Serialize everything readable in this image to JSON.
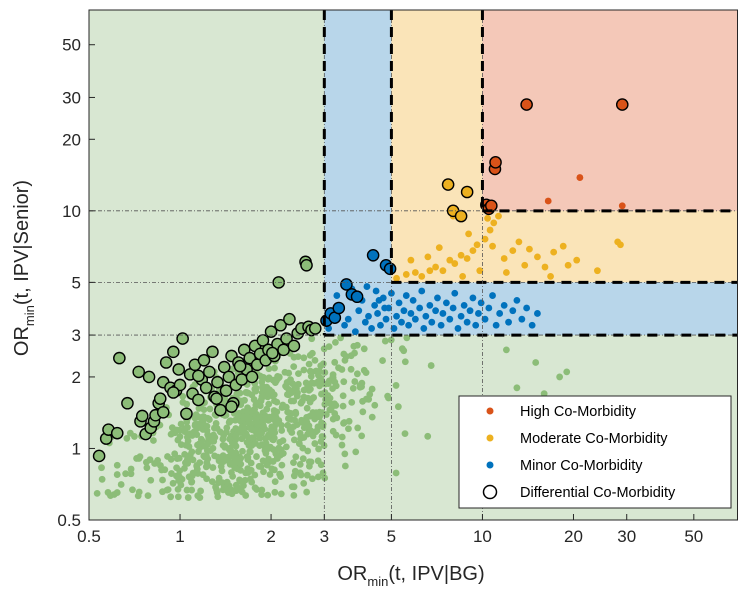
{
  "chart_data": {
    "type": "scatter",
    "xscale": "log",
    "yscale": "log",
    "xlim": [
      0.5,
      70
    ],
    "ylim": [
      0.5,
      70
    ],
    "xlabel": {
      "base": "OR",
      "sub": "min",
      "rest": "(t, IPV|BG)"
    },
    "ylabel": {
      "base": "OR",
      "sub": "min",
      "rest": "(t, IPV|Senior)"
    },
    "xticks": [
      0.5,
      1,
      2,
      3,
      5,
      10,
      20,
      30,
      50
    ],
    "xtick_labels": [
      "0.5",
      "1",
      "2",
      "3",
      "5",
      "10",
      "20",
      "30",
      "50"
    ],
    "yticks": [
      0.5,
      1,
      2,
      3,
      5,
      10,
      20,
      30,
      50
    ],
    "ytick_labels": [
      "0.5",
      "1",
      "2",
      "3",
      "5",
      "10",
      "20",
      "30",
      "50"
    ],
    "grid": false,
    "legend_position": "bottom-right",
    "regions": [
      {
        "name": "minor",
        "color": "#b8d6ea",
        "x": [
          3,
          70
        ],
        "y": [
          3,
          5
        ]
      },
      {
        "name": "minor-vertical",
        "color": "#b8d6ea",
        "x": [
          3,
          5
        ],
        "y": [
          3,
          70
        ]
      },
      {
        "name": "moderate",
        "color": "#fae4b8",
        "x": [
          5,
          70
        ],
        "y": [
          5,
          10
        ]
      },
      {
        "name": "moderate-vertical",
        "color": "#fae4b8",
        "x": [
          5,
          10
        ],
        "y": [
          5,
          70
        ]
      },
      {
        "name": "high",
        "color": "#f4c8b8",
        "x": [
          10,
          70
        ],
        "y": [
          10,
          70
        ]
      }
    ],
    "background_color": "#d8e7d2",
    "thresholds": [
      3,
      5,
      10
    ],
    "series": [
      {
        "name": "High Co-Morbidity",
        "color": "#d95319",
        "points": [
          [
            16.5,
            11
          ],
          [
            21,
            13.8
          ],
          [
            29,
            10.5
          ],
          [
            14,
            28
          ],
          [
            29,
            28
          ]
        ]
      },
      {
        "name": "Moderate Co-Morbidity",
        "color": "#edb120",
        "points": [
          [
            5.2,
            5.2
          ],
          [
            5.6,
            5.4
          ],
          [
            6.0,
            5.5
          ],
          [
            6.3,
            5.3
          ],
          [
            6.7,
            5.6
          ],
          [
            7.0,
            5.8
          ],
          [
            7.4,
            5.6
          ],
          [
            7.8,
            6.2
          ],
          [
            8.1,
            6.0
          ],
          [
            8.5,
            6.5
          ],
          [
            8.9,
            6.3
          ],
          [
            9.3,
            6.8
          ],
          [
            9.6,
            7.2
          ],
          [
            10.2,
            7.6
          ],
          [
            10.6,
            8.3
          ],
          [
            10.9,
            8.9
          ],
          [
            11.3,
            9.5
          ],
          [
            10.4,
            9.3
          ],
          [
            10.8,
            7.1
          ],
          [
            11.8,
            6.3
          ],
          [
            12.6,
            6.8
          ],
          [
            13.2,
            7.4
          ],
          [
            14.3,
            6.9
          ],
          [
            15.2,
            6.4
          ],
          [
            16.1,
            5.8
          ],
          [
            17.2,
            6.7
          ],
          [
            18.5,
            7.1
          ],
          [
            20.5,
            6.2
          ],
          [
            24.0,
            5.6
          ],
          [
            28.0,
            7.4
          ],
          [
            28.6,
            7.2
          ],
          [
            8.0,
            9.5
          ],
          [
            9.0,
            8.0
          ],
          [
            7.2,
            7.0
          ],
          [
            6.6,
            6.4
          ],
          [
            5.8,
            6.2
          ],
          [
            12.0,
            5.5
          ],
          [
            13.8,
            5.9
          ],
          [
            16.8,
            5.3
          ],
          [
            19.2,
            5.9
          ],
          [
            9.8,
            5.6
          ],
          [
            8.6,
            5.3
          ]
        ]
      },
      {
        "name": "Minor Co-Morbidity",
        "color": "#0072bd",
        "points": [
          [
            3.1,
            3.2
          ],
          [
            3.2,
            3.6
          ],
          [
            3.4,
            3.9
          ],
          [
            3.5,
            3.3
          ],
          [
            3.6,
            3.5
          ],
          [
            3.8,
            3.1
          ],
          [
            3.9,
            3.8
          ],
          [
            4.0,
            4.2
          ],
          [
            4.1,
            3.4
          ],
          [
            4.2,
            3.6
          ],
          [
            4.3,
            3.2
          ],
          [
            4.4,
            4.0
          ],
          [
            4.5,
            3.7
          ],
          [
            4.6,
            3.3
          ],
          [
            4.7,
            4.3
          ],
          [
            4.8,
            3.5
          ],
          [
            4.9,
            3.9
          ],
          [
            5.0,
            4.5
          ],
          [
            5.1,
            3.2
          ],
          [
            5.2,
            3.6
          ],
          [
            5.3,
            4.1
          ],
          [
            5.4,
            3.4
          ],
          [
            5.5,
            3.8
          ],
          [
            5.6,
            4.4
          ],
          [
            5.7,
            3.3
          ],
          [
            5.8,
            3.7
          ],
          [
            5.9,
            4.2
          ],
          [
            6.0,
            3.5
          ],
          [
            6.2,
            3.9
          ],
          [
            6.3,
            4.6
          ],
          [
            6.4,
            3.2
          ],
          [
            6.5,
            3.6
          ],
          [
            6.7,
            4.0
          ],
          [
            6.8,
            3.4
          ],
          [
            7.0,
            3.8
          ],
          [
            7.1,
            4.3
          ],
          [
            7.3,
            3.3
          ],
          [
            7.4,
            3.7
          ],
          [
            7.6,
            4.1
          ],
          [
            7.8,
            3.5
          ],
          [
            8.0,
            3.9
          ],
          [
            8.1,
            4.5
          ],
          [
            8.3,
            3.2
          ],
          [
            8.5,
            3.6
          ],
          [
            8.7,
            4.0
          ],
          [
            8.9,
            3.4
          ],
          [
            9.1,
            3.8
          ],
          [
            9.3,
            4.3
          ],
          [
            9.5,
            3.3
          ],
          [
            9.7,
            3.7
          ],
          [
            9.9,
            4.1
          ],
          [
            10.2,
            3.5
          ],
          [
            10.5,
            3.9
          ],
          [
            10.8,
            4.4
          ],
          [
            11.1,
            3.3
          ],
          [
            11.4,
            3.7
          ],
          [
            11.8,
            4.0
          ],
          [
            12.2,
            3.4
          ],
          [
            12.6,
            3.8
          ],
          [
            13.0,
            4.2
          ],
          [
            13.5,
            3.5
          ],
          [
            14.0,
            3.9
          ],
          [
            14.6,
            3.3
          ],
          [
            15.2,
            3.7
          ],
          [
            3.3,
            4.4
          ],
          [
            3.7,
            4.7
          ],
          [
            4.15,
            4.8
          ],
          [
            4.45,
            4.6
          ],
          [
            4.55,
            4.2
          ],
          [
            4.75,
            3.9
          ]
        ]
      },
      {
        "name": "Differential Co-Morbidity",
        "color": "none",
        "edgecolor": "#000000",
        "points": [
          [
            0.54,
            0.93
          ],
          [
            0.57,
            1.1
          ],
          [
            0.58,
            1.2
          ],
          [
            0.62,
            1.16
          ],
          [
            0.63,
            2.4
          ],
          [
            0.67,
            1.55
          ],
          [
            0.73,
            2.1
          ],
          [
            0.74,
            1.3
          ],
          [
            0.75,
            1.37
          ],
          [
            0.77,
            1.15
          ],
          [
            0.79,
            2.0
          ],
          [
            0.8,
            1.22
          ],
          [
            0.82,
            1.3
          ],
          [
            0.83,
            1.38
          ],
          [
            0.85,
            1.55
          ],
          [
            0.86,
            1.62
          ],
          [
            0.88,
            1.9
          ],
          [
            0.9,
            2.3
          ],
          [
            0.93,
            1.8
          ],
          [
            0.95,
            2.55
          ],
          [
            0.97,
            1.75
          ],
          [
            0.99,
            2.15
          ],
          [
            1.0,
            1.85
          ],
          [
            1.02,
            2.9
          ],
          [
            1.05,
            1.4
          ],
          [
            1.08,
            2.05
          ],
          [
            1.1,
            1.7
          ],
          [
            1.12,
            2.25
          ],
          [
            1.15,
            1.6
          ],
          [
            1.18,
            1.95
          ],
          [
            1.2,
            2.35
          ],
          [
            1.22,
            1.8
          ],
          [
            1.25,
            2.1
          ],
          [
            1.28,
            2.55
          ],
          [
            1.3,
            1.65
          ],
          [
            1.33,
            1.9
          ],
          [
            1.36,
            1.45
          ],
          [
            1.4,
            2.2
          ],
          [
            1.42,
            1.75
          ],
          [
            1.45,
            2.0
          ],
          [
            1.48,
            2.45
          ],
          [
            1.5,
            1.55
          ],
          [
            1.53,
            1.85
          ],
          [
            1.56,
            2.3
          ],
          [
            1.6,
            1.95
          ],
          [
            1.63,
            2.6
          ],
          [
            1.66,
            2.15
          ],
          [
            1.7,
            2.4
          ],
          [
            1.73,
            2.0
          ],
          [
            1.77,
            2.7
          ],
          [
            1.8,
            2.25
          ],
          [
            1.84,
            2.5
          ],
          [
            1.88,
            2.85
          ],
          [
            1.92,
            2.35
          ],
          [
            1.96,
            2.6
          ],
          [
            2.0,
            3.1
          ],
          [
            2.05,
            2.45
          ],
          [
            2.1,
            2.75
          ],
          [
            2.15,
            3.3
          ],
          [
            2.2,
            2.6
          ],
          [
            2.25,
            2.9
          ],
          [
            2.3,
            3.5
          ],
          [
            2.38,
            2.7
          ],
          [
            2.45,
            3.05
          ],
          [
            2.52,
            3.2
          ],
          [
            2.6,
            6.1
          ],
          [
            2.62,
            5.9
          ],
          [
            2.66,
            3.25
          ],
          [
            2.72,
            3.15
          ],
          [
            2.8,
            3.2
          ],
          [
            3.05,
            3.45
          ],
          [
            3.15,
            3.7
          ],
          [
            3.25,
            3.55
          ],
          [
            3.35,
            3.9
          ],
          [
            3.55,
            4.9
          ],
          [
            3.7,
            4.45
          ],
          [
            3.85,
            4.35
          ],
          [
            4.35,
            6.5
          ],
          [
            4.8,
            5.9
          ],
          [
            4.95,
            5.7
          ],
          [
            7.7,
            12.9
          ],
          [
            8.0,
            10.0
          ],
          [
            8.5,
            9.5
          ],
          [
            8.9,
            12.0
          ],
          [
            10.3,
            10.6
          ],
          [
            10.5,
            10.2
          ],
          [
            10.7,
            10.5
          ],
          [
            11.0,
            15.0
          ],
          [
            11.05,
            16.0
          ],
          [
            14.0,
            28.0
          ],
          [
            29.0,
            28.0
          ],
          [
            0.95,
            1.72
          ],
          [
            1.32,
            1.62
          ],
          [
            1.58,
            2.22
          ],
          [
            2.02,
            2.52
          ],
          [
            1.15,
            2.02
          ],
          [
            0.88,
            1.42
          ],
          [
            1.48,
            1.5
          ],
          [
            2.12,
            5.0
          ]
        ]
      },
      {
        "name": "",
        "color": "#8cbd78",
        "points": []
      }
    ],
    "legend": [
      "High Co-Morbidity",
      "Moderate Co-Morbidity",
      "Minor Co-Morbidity",
      "Differential Co-Morbidity"
    ]
  }
}
